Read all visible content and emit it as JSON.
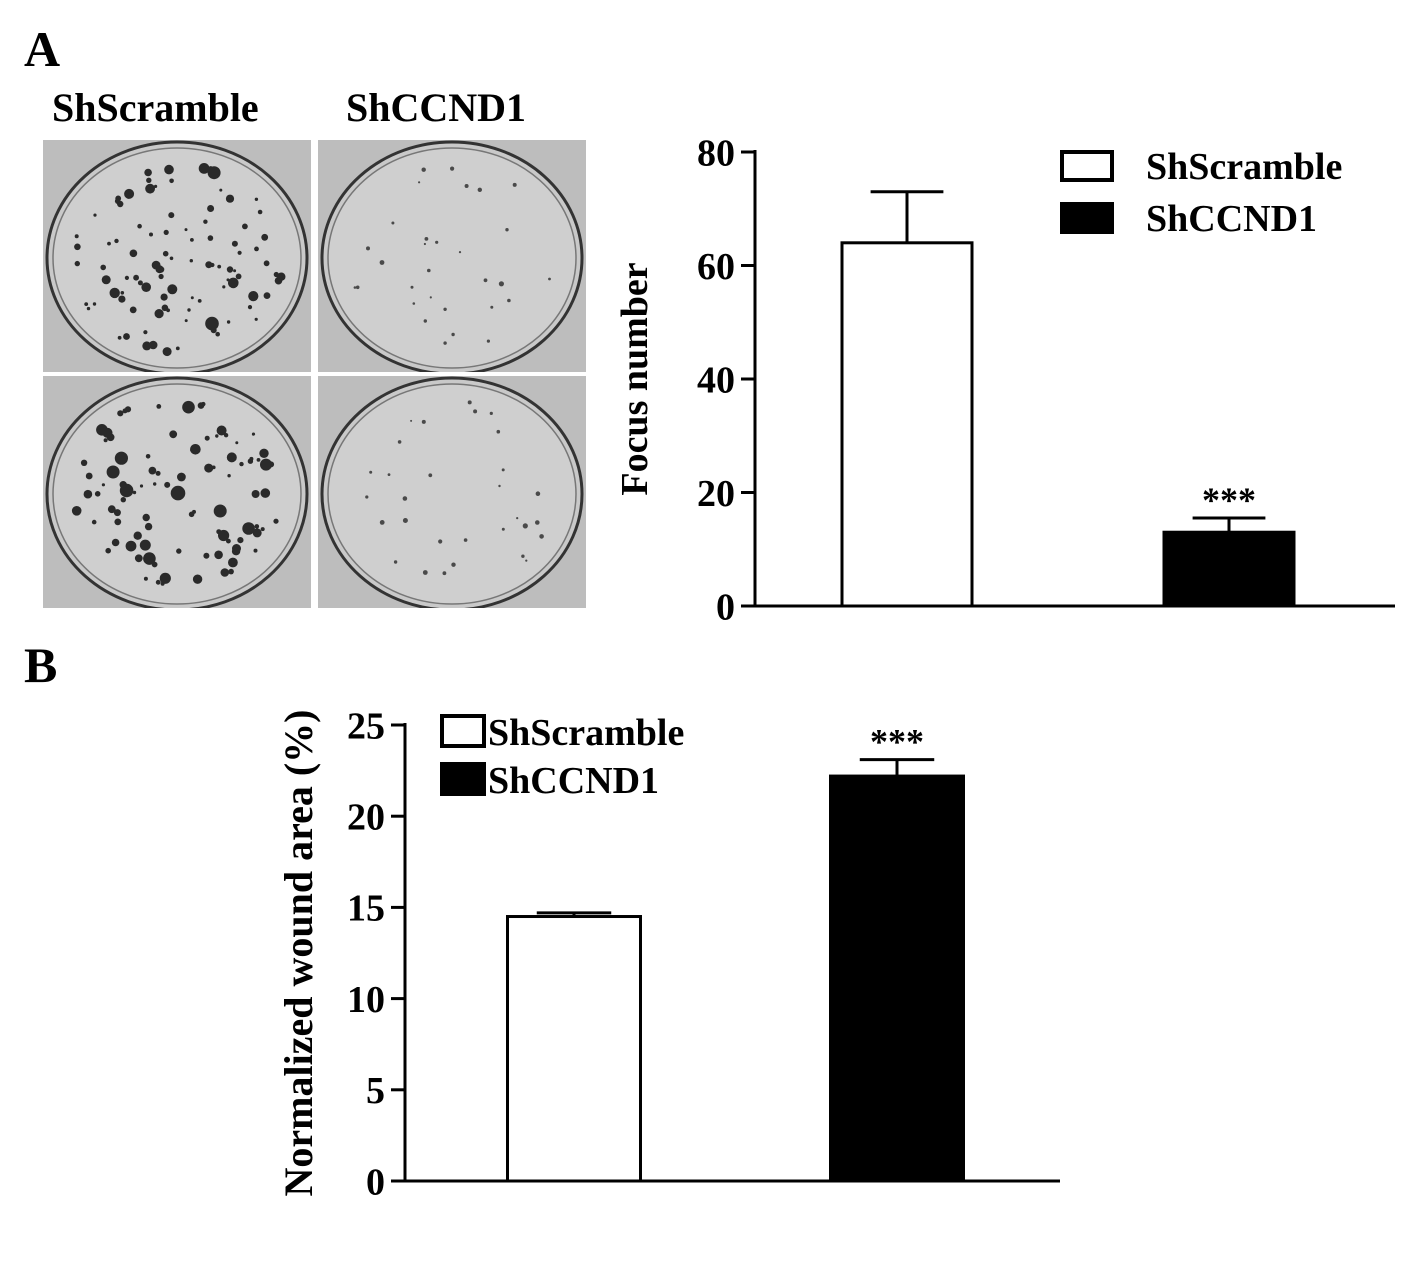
{
  "panels": {
    "a": {
      "letter": "A",
      "plate_labels": [
        "ShScramble",
        "ShCCND1"
      ]
    },
    "b": {
      "letter": "B"
    }
  },
  "chart_data": [
    {
      "id": "chartA",
      "type": "bar",
      "categories": [
        "ShScramble",
        "ShCCND1"
      ],
      "series": [
        {
          "name": "ShScramble",
          "color": "#ffffff",
          "values": [
            64,
            null
          ],
          "errors": [
            9,
            null
          ]
        },
        {
          "name": "ShCCND1",
          "color": "#000000",
          "values": [
            null,
            13
          ],
          "errors": [
            null,
            2.5
          ]
        }
      ],
      "title": "",
      "xlabel": "",
      "ylabel": "Focus number",
      "ylim": [
        0,
        80
      ],
      "yticks": [
        0,
        20,
        40,
        60,
        80
      ],
      "annotations": [
        {
          "category": "ShCCND1",
          "text": "***"
        }
      ],
      "legend_position": "top-right",
      "grid": false
    },
    {
      "id": "chartB",
      "type": "bar",
      "categories": [
        "ShScramble",
        "ShCCND1"
      ],
      "series": [
        {
          "name": "ShScramble",
          "color": "#ffffff",
          "values": [
            14.5,
            null
          ],
          "errors": [
            0.2,
            null
          ]
        },
        {
          "name": "ShCCND1",
          "color": "#000000",
          "values": [
            null,
            22.2
          ],
          "errors": [
            null,
            0.9
          ]
        }
      ],
      "title": "",
      "xlabel": "",
      "ylabel": "Normalized wound area (%)",
      "ylim": [
        0,
        25
      ],
      "yticks": [
        0,
        5,
        10,
        15,
        20,
        25
      ],
      "annotations": [
        {
          "category": "ShCCND1",
          "text": "***"
        }
      ],
      "legend_position": "top-left",
      "grid": false
    }
  ]
}
